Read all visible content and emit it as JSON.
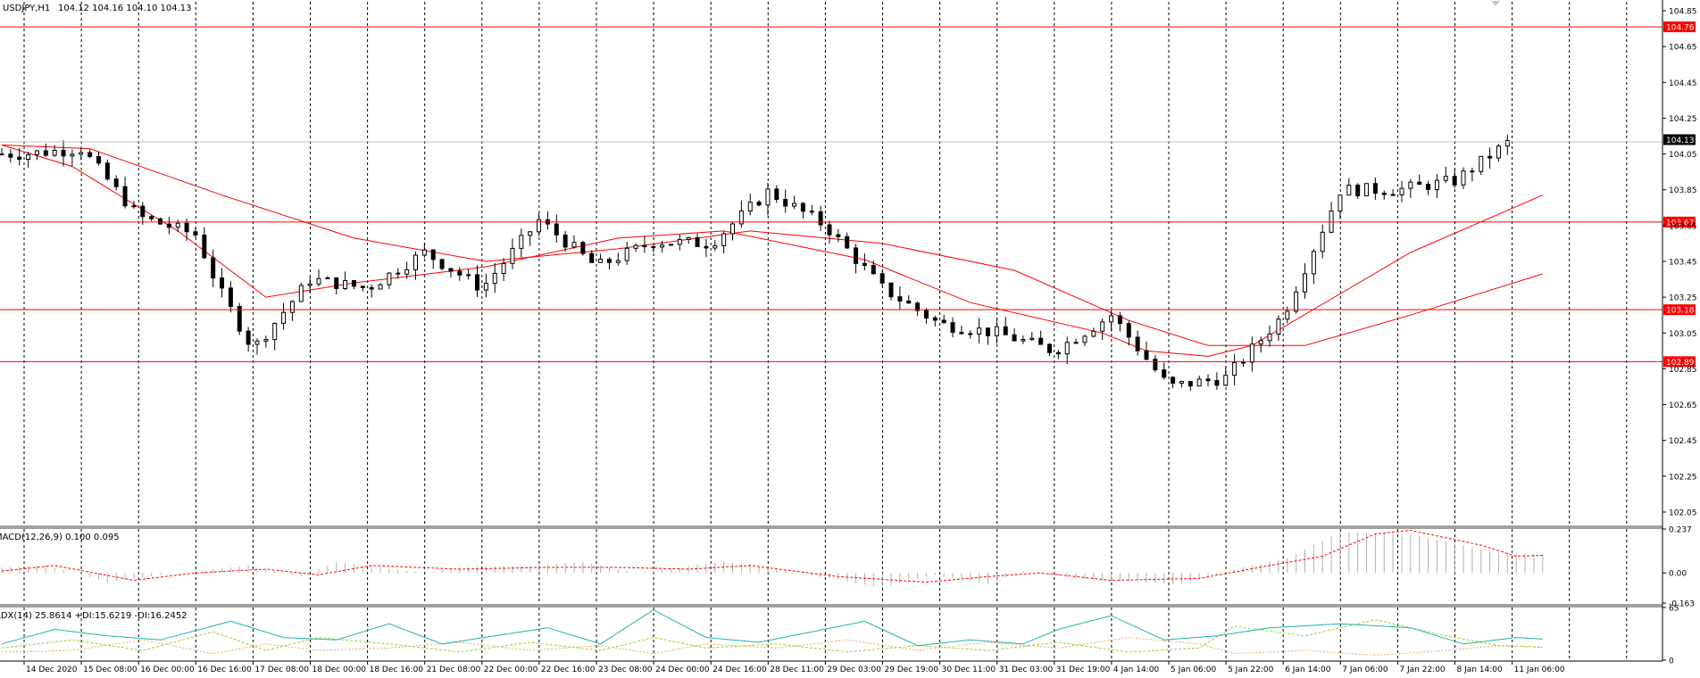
{
  "main_header": {
    "symbol_tf": "USDJPY,H1",
    "ohlc": "104.12 104.16 104.10 104.13"
  },
  "macd_header": "MACD(12,26,9) 0.100 0.095",
  "adx_header": "ADX(14) 25.8614 +DI:15.6219 -DI:16.2452",
  "colors": {
    "level_line": "#ff0000",
    "ma_line": "#ff0000",
    "candle": "#000000",
    "macd_hist": "#b0b0b0",
    "macd_signal": "#ff0000",
    "adx_main": "#20b2aa",
    "adx_plus": "#9acd32",
    "adx_minus": "#f4a460",
    "grid": "#000000",
    "price_tag_bg": "#ff0000",
    "current_tag_bg": "#000000"
  },
  "x_axis": {
    "labels": [
      "14 Dec 2020",
      "15 Dec 08:00",
      "16 Dec 00:00",
      "16 Dec 16:00",
      "17 Dec 08:00",
      "18 Dec 00:00",
      "18 Dec 16:00",
      "21 Dec 08:00",
      "22 Dec 00:00",
      "22 Dec 16:00",
      "23 Dec 08:00",
      "24 Dec 00:00",
      "24 Dec 16:00",
      "28 Dec 11:00",
      "29 Dec 03:00",
      "29 Dec 19:00",
      "30 Dec 11:00",
      "31 Dec 03:00",
      "31 Dec 19:00",
      "4 Jan 14:00",
      "5 Jan 06:00",
      "5 Jan 22:00",
      "6 Jan 14:00",
      "7 Jan 06:00",
      "7 Jan 22:00",
      "8 Jan 14:00",
      "11 Jan 06:00"
    ]
  },
  "price_axis": {
    "ticks": [
      "104.85",
      "104.65",
      "104.45",
      "104.25",
      "104.05",
      "103.85",
      "103.65",
      "103.45",
      "103.25",
      "103.05",
      "102.85",
      "102.65",
      "102.45",
      "102.25",
      "102.05"
    ]
  },
  "macd_axis": {
    "ticks": [
      "0.237",
      "0.00",
      "-0.163"
    ]
  },
  "adx_axis": {
    "ticks": [
      "65",
      "0"
    ]
  },
  "chart_data": [
    {
      "type": "candlestick",
      "title": "USDJPY,H1",
      "ylim": [
        101.98,
        104.9
      ],
      "levels": [
        "104.76",
        "103.67",
        "103.18",
        "102.89"
      ],
      "current_price": "104.13",
      "anchors": [
        [
          "14 Dec 2020",
          104.05
        ],
        [
          "15 Dec 08:00",
          104.08
        ],
        [
          "16 Dec 00:00",
          103.7
        ],
        [
          "16 Dec 16:00",
          103.6
        ],
        [
          "16 Dec 22:00",
          103.3
        ],
        [
          "17 Dec 08:00",
          102.96
        ],
        [
          "18 Dec 00:00",
          103.35
        ],
        [
          "18 Dec 16:00",
          103.3
        ],
        [
          "21 Dec 08:00",
          103.5
        ],
        [
          "22 Dec 00:00",
          103.3
        ],
        [
          "22 Dec 16:00",
          103.68
        ],
        [
          "23 Dec 08:00",
          103.42
        ],
        [
          "24 Dec 00:00",
          103.56
        ],
        [
          "24 Dec 16:00",
          103.55
        ],
        [
          "28 Dec 11:00",
          103.84
        ],
        [
          "29 Dec 03:00",
          103.65
        ],
        [
          "29 Dec 19:00",
          103.3
        ],
        [
          "30 Dec 11:00",
          103.1
        ],
        [
          "31 Dec 03:00",
          103.05
        ],
        [
          "31 Dec 19:00",
          102.95
        ],
        [
          "4 Jan 14:00",
          103.15
        ],
        [
          "5 Jan 06:00",
          102.75
        ],
        [
          "5 Jan 22:00",
          102.8
        ],
        [
          "6 Jan 14:00",
          103.15
        ],
        [
          "7 Jan 06:00",
          103.85
        ],
        [
          "7 Jan 22:00",
          103.85
        ],
        [
          "8 Jan 14:00",
          103.9
        ],
        [
          "11 Jan 06:00",
          104.13
        ]
      ],
      "moving_averages": [
        {
          "points": [
            [
              0,
              104.1
            ],
            [
              8,
              103.98
            ],
            [
              20,
              103.62
            ],
            [
              30,
              103.25
            ],
            [
              40,
              103.33
            ],
            [
              55,
              103.42
            ],
            [
              70,
              103.58
            ],
            [
              82,
              103.62
            ],
            [
              98,
              103.46
            ],
            [
              110,
              103.22
            ],
            [
              125,
              103.05
            ],
            [
              130,
              102.95
            ],
            [
              137,
              102.92
            ],
            [
              142,
              102.98
            ],
            [
              160,
              103.5
            ],
            [
              175,
              103.82
            ]
          ]
        },
        {
          "points": [
            [
              0,
              104.1
            ],
            [
              10,
              104.08
            ],
            [
              25,
              103.82
            ],
            [
              40,
              103.58
            ],
            [
              55,
              103.45
            ],
            [
              70,
              103.52
            ],
            [
              85,
              103.62
            ],
            [
              100,
              103.55
            ],
            [
              115,
              103.4
            ],
            [
              128,
              103.12
            ],
            [
              137,
              102.98
            ],
            [
              148,
              102.98
            ],
            [
              160,
              103.15
            ],
            [
              175,
              103.38
            ]
          ]
        }
      ]
    },
    {
      "type": "bar",
      "title": "MACD(12,26,9)",
      "ylim": [
        -0.163,
        0.237
      ],
      "values_main": "0.100",
      "values_signal": "0.095",
      "histogram_anchors": [
        [
          0,
          0.03
        ],
        [
          5,
          0.04
        ],
        [
          12,
          -0.05
        ],
        [
          18,
          -0.01
        ],
        [
          28,
          0.04
        ],
        [
          34,
          -0.02
        ],
        [
          38,
          0.06
        ],
        [
          48,
          0.0
        ],
        [
          52,
          0.03
        ],
        [
          60,
          0.04
        ],
        [
          66,
          0.06
        ],
        [
          72,
          0.0
        ],
        [
          82,
          0.06
        ],
        [
          88,
          0.02
        ],
        [
          100,
          -0.08
        ],
        [
          106,
          -0.01
        ],
        [
          112,
          -0.06
        ],
        [
          116,
          0.01
        ],
        [
          124,
          -0.04
        ],
        [
          134,
          -0.06
        ],
        [
          141,
          0.03
        ],
        [
          146,
          0.08
        ],
        [
          152,
          0.22
        ],
        [
          160,
          0.21
        ],
        [
          170,
          0.11
        ],
        [
          175,
          0.1
        ]
      ],
      "signal_anchors": [
        [
          0,
          0.01
        ],
        [
          6,
          0.04
        ],
        [
          15,
          -0.04
        ],
        [
          22,
          0.0
        ],
        [
          30,
          0.02
        ],
        [
          36,
          -0.01
        ],
        [
          42,
          0.04
        ],
        [
          52,
          0.02
        ],
        [
          62,
          0.03
        ],
        [
          70,
          0.03
        ],
        [
          78,
          0.02
        ],
        [
          85,
          0.04
        ],
        [
          95,
          -0.02
        ],
        [
          105,
          -0.05
        ],
        [
          112,
          -0.02
        ],
        [
          118,
          0.0
        ],
        [
          126,
          -0.04
        ],
        [
          136,
          -0.03
        ],
        [
          144,
          0.04
        ],
        [
          150,
          0.09
        ],
        [
          156,
          0.21
        ],
        [
          160,
          0.23
        ],
        [
          168,
          0.15
        ],
        [
          172,
          0.09
        ],
        [
          175,
          0.095
        ]
      ]
    },
    {
      "type": "line",
      "title": "ADX(14)",
      "ylim": [
        0,
        65
      ],
      "series": [
        {
          "name": "ADX(14)",
          "values_text": "25.8614",
          "anchors": [
            [
              0,
              20
            ],
            [
              6,
              38
            ],
            [
              12,
              30
            ],
            [
              18,
              25
            ],
            [
              26,
              48
            ],
            [
              32,
              28
            ],
            [
              38,
              25
            ],
            [
              44,
              45
            ],
            [
              50,
              20
            ],
            [
              56,
              30
            ],
            [
              62,
              40
            ],
            [
              68,
              20
            ],
            [
              74,
              62
            ],
            [
              80,
              28
            ],
            [
              86,
              22
            ],
            [
              92,
              35
            ],
            [
              98,
              48
            ],
            [
              104,
              18
            ],
            [
              110,
              25
            ],
            [
              116,
              20
            ],
            [
              120,
              38
            ],
            [
              126,
              55
            ],
            [
              132,
              25
            ],
            [
              138,
              30
            ],
            [
              144,
              40
            ],
            [
              152,
              45
            ],
            [
              160,
              40
            ],
            [
              166,
              20
            ],
            [
              172,
              28
            ],
            [
              175,
              26
            ]
          ]
        },
        {
          "name": "+DI",
          "values_text": "15.6219",
          "anchors": [
            [
              0,
              15
            ],
            [
              8,
              25
            ],
            [
              16,
              12
            ],
            [
              24,
              35
            ],
            [
              30,
              12
            ],
            [
              36,
              28
            ],
            [
              44,
              20
            ],
            [
              52,
              10
            ],
            [
              60,
              22
            ],
            [
              68,
              12
            ],
            [
              74,
              28
            ],
            [
              80,
              15
            ],
            [
              88,
              20
            ],
            [
              96,
              10
            ],
            [
              104,
              18
            ],
            [
              112,
              12
            ],
            [
              120,
              22
            ],
            [
              128,
              10
            ],
            [
              136,
              15
            ],
            [
              140,
              42
            ],
            [
              148,
              30
            ],
            [
              156,
              50
            ],
            [
              164,
              30
            ],
            [
              170,
              18
            ],
            [
              175,
              16
            ]
          ]
        },
        {
          "name": "-DI",
          "values_text": "16.2452",
          "anchors": [
            [
              0,
              10
            ],
            [
              8,
              12
            ],
            [
              16,
              25
            ],
            [
              24,
              8
            ],
            [
              30,
              20
            ],
            [
              36,
              12
            ],
            [
              44,
              15
            ],
            [
              52,
              22
            ],
            [
              60,
              12
            ],
            [
              68,
              18
            ],
            [
              74,
              8
            ],
            [
              80,
              20
            ],
            [
              88,
              15
            ],
            [
              96,
              25
            ],
            [
              104,
              12
            ],
            [
              112,
              22
            ],
            [
              120,
              15
            ],
            [
              128,
              28
            ],
            [
              136,
              20
            ],
            [
              140,
              8
            ],
            [
              148,
              12
            ],
            [
              156,
              6
            ],
            [
              164,
              12
            ],
            [
              170,
              18
            ],
            [
              175,
              16
            ]
          ]
        }
      ]
    }
  ]
}
